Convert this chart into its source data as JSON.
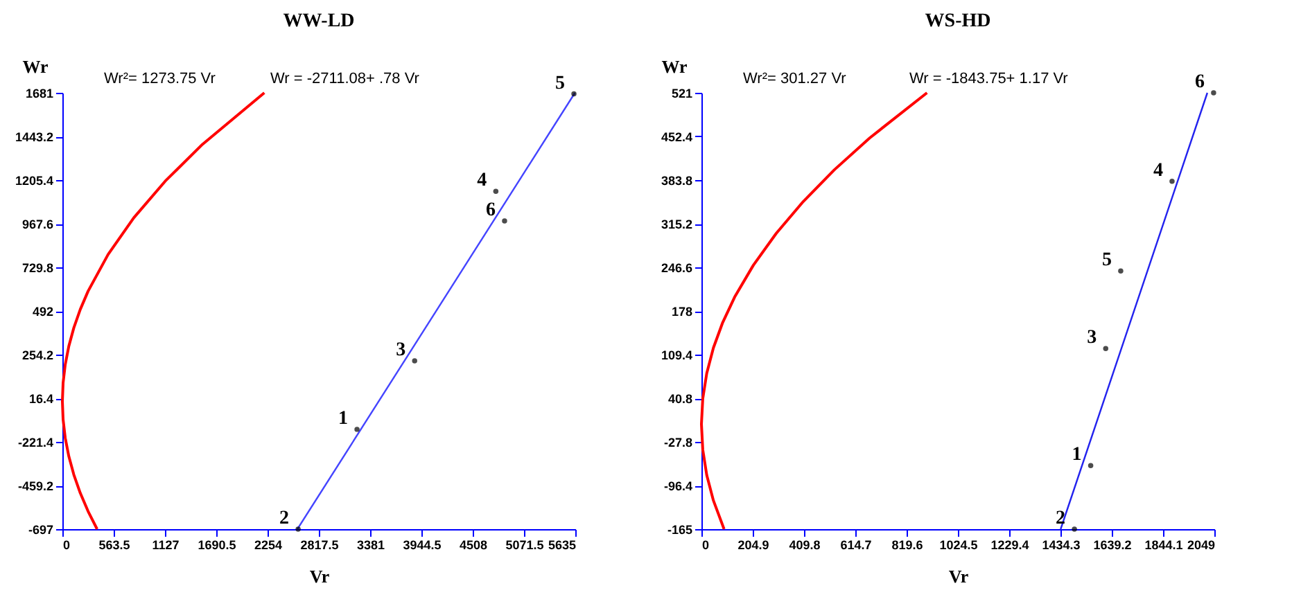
{
  "chart_data": [
    {
      "type": "line",
      "title": "WW-LD",
      "xlabel": "Vr",
      "ylabel": "Wr",
      "annotations": [
        "Wr²= 1273.75 Vr",
        "Wr = -2711.08+ .78 Vr",
        {
          "text": "1",
          "x": 3237,
          "y": -153
        },
        {
          "text": "2",
          "x": 2590,
          "y": -697
        },
        {
          "text": "3",
          "x": 3870,
          "y": 220
        },
        {
          "text": "4",
          "x": 4762,
          "y": 1144
        },
        {
          "text": "5",
          "x": 5620,
          "y": 1675
        },
        {
          "text": "6",
          "x": 4858,
          "y": 983
        }
      ],
      "xlim": [
        0,
        5635
      ],
      "ylim": [
        -697,
        1681
      ],
      "xticks": [
        0,
        563.5,
        1127,
        1690.5,
        2254,
        2817.5,
        3381,
        3944.5,
        4508,
        5071.5,
        5635
      ],
      "yticks": [
        -697,
        -459.2,
        -221.4,
        16.4,
        254.2,
        492,
        729.8,
        967.6,
        1205.4,
        1443.2,
        1681
      ],
      "series": [
        {
          "color": "#ff0000",
          "x": [
            381.4,
            282.6,
            196.3,
            125.6,
            70.7,
            31.4,
            7.9,
            0,
            7.9,
            31.4,
            70.7,
            125.6,
            196.3,
            282.6,
            502.4,
            785.1,
            1130.5,
            1538.8,
            2218.5
          ],
          "values": [
            -697,
            -600,
            -500,
            -400,
            -300,
            -200,
            -100,
            0,
            100,
            200,
            300,
            400,
            500,
            600,
            800,
            1000,
            1200,
            1400,
            1681
          ]
        },
        {
          "color": "#4444ff",
          "x": [
            2582,
            5630
          ],
          "values": [
            -697,
            1680
          ]
        },
        {
          "type": "scatter",
          "color": "#000000",
          "marker": "circle",
          "x": [
            3237,
            2590,
            3870,
            4762,
            5620,
            4858
          ],
          "values": [
            -153,
            -697,
            220,
            1144,
            1675,
            983
          ]
        }
      ]
    },
    {
      "type": "line",
      "title": "WS-HD",
      "xlabel": "Vr",
      "ylabel": "Wr",
      "annotations": [
        "Wr²= 301.27 Vr",
        "Wr = -1843.75+ 1.17 Vr",
        {
          "text": "1",
          "x": 1555,
          "y": -65
        },
        {
          "text": "2",
          "x": 1490,
          "y": -165
        },
        {
          "text": "3",
          "x": 1615,
          "y": 119
        },
        {
          "text": "4",
          "x": 1880,
          "y": 382
        },
        {
          "text": "5",
          "x": 1675,
          "y": 241
        },
        {
          "text": "6",
          "x": 2046,
          "y": 521
        }
      ],
      "xlim": [
        0,
        2049
      ],
      "ylim": [
        -165,
        521
      ],
      "xticks": [
        0,
        204.9,
        409.8,
        614.7,
        819.6,
        1024.5,
        1229.4,
        1434.3,
        1639.2,
        1844.1,
        2049
      ],
      "yticks": [
        -165,
        -96.4,
        -27.8,
        40.8,
        109.4,
        178,
        246.6,
        315.2,
        383.8,
        452.4,
        521
      ],
      "series": [
        {
          "color": "#ff0000",
          "x": [
            90.4,
            47.8,
            21.2,
            5.3,
            0,
            5.3,
            21.2,
            47.8,
            85.0,
            132.8,
            207.5,
            298.7,
            406.6,
            531.1,
            672.1,
            901.0
          ],
          "values": [
            -165,
            -120,
            -80,
            -40,
            0,
            40,
            80,
            120,
            160,
            200,
            250,
            300,
            350,
            400,
            450,
            521
          ]
        },
        {
          "color": "#2222ee",
          "x": [
            1435,
            2021
          ],
          "values": [
            -165,
            521
          ]
        },
        {
          "type": "scatter",
          "color": "#000000",
          "marker": "circle",
          "x": [
            1555,
            1490,
            1615,
            1880,
            1675,
            2046
          ],
          "values": [
            -65,
            -165,
            119,
            382,
            241,
            521
          ]
        }
      ]
    }
  ]
}
